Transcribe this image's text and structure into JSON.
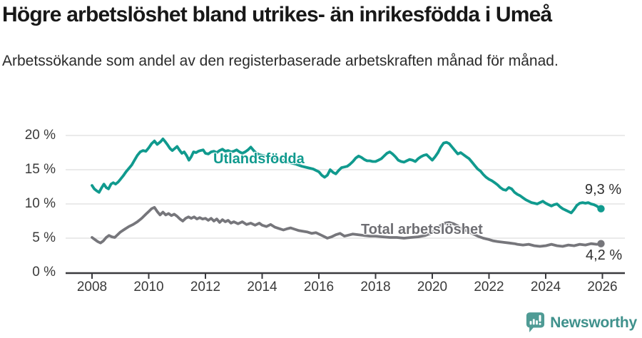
{
  "title": "Högre arbetslöshet bland utrikes- än inrikesfödda i Umeå",
  "subtitle": "Arbetssökande som andel av den registerbaserade arbetskraften månad för månad.",
  "footer": {
    "brand": "Newsworthy",
    "brand_color": "#3f918c",
    "icon_color": "#4f9b95"
  },
  "chart_data": {
    "type": "line",
    "title": "Högre arbetslöshet bland utrikes- än inrikesfödda i Umeå",
    "xlabel": "",
    "ylabel": "%",
    "grid": true,
    "legend_position": "inline-labels",
    "colors": {
      "grid": "#dedede",
      "axis": "#3a3a3e"
    },
    "x_axis": {
      "range": [
        2008,
        2026.1
      ],
      "ticks": [
        2008,
        2010,
        2012,
        2014,
        2016,
        2018,
        2020,
        2022,
        2024,
        2026
      ],
      "tick_labels": [
        "2008",
        "2010",
        "2012",
        "2014",
        "2016",
        "2018",
        "2020",
        "2022",
        "2024",
        "2026"
      ]
    },
    "y_axis": {
      "range": [
        0,
        20
      ],
      "unit": "%",
      "ticks": [
        20,
        15,
        10,
        5,
        0
      ],
      "tick_labels": [
        "20 %",
        "15 %",
        "10 %",
        "5 %",
        "0 %"
      ]
    },
    "series": [
      {
        "name": "Utlandsfödda",
        "color": "#109a8e",
        "end_label": "9,3 %",
        "end_value": 9.3,
        "points": [
          [
            2008,
            12.7
          ],
          [
            2008.08,
            12.2
          ],
          [
            2008.17,
            11.9
          ],
          [
            2008.25,
            11.7
          ],
          [
            2008.33,
            12.3
          ],
          [
            2008.42,
            12.9
          ],
          [
            2008.5,
            12.4
          ],
          [
            2008.58,
            12.2
          ],
          [
            2008.67,
            12.9
          ],
          [
            2008.75,
            13.1
          ],
          [
            2008.83,
            12.9
          ],
          [
            2008.92,
            13.2
          ],
          [
            2009,
            13.6
          ],
          [
            2009.1,
            14.1
          ],
          [
            2009.2,
            14.7
          ],
          [
            2009.3,
            15.2
          ],
          [
            2009.4,
            15.7
          ],
          [
            2009.5,
            16.4
          ],
          [
            2009.6,
            17.1
          ],
          [
            2009.7,
            17.6
          ],
          [
            2009.8,
            17.8
          ],
          [
            2009.9,
            17.7
          ],
          [
            2010,
            18.2
          ],
          [
            2010.1,
            18.8
          ],
          [
            2010.2,
            19.2
          ],
          [
            2010.3,
            18.7
          ],
          [
            2010.42,
            19.1
          ],
          [
            2010.5,
            19.5
          ],
          [
            2010.58,
            19.1
          ],
          [
            2010.67,
            18.6
          ],
          [
            2010.75,
            18.1
          ],
          [
            2010.83,
            17.8
          ],
          [
            2010.92,
            18.1
          ],
          [
            2011,
            18.4
          ],
          [
            2011.08,
            17.9
          ],
          [
            2011.17,
            17.4
          ],
          [
            2011.25,
            17.6
          ],
          [
            2011.33,
            17.1
          ],
          [
            2011.42,
            16.4
          ],
          [
            2011.5,
            16.9
          ],
          [
            2011.58,
            17.6
          ],
          [
            2011.67,
            17.5
          ],
          [
            2011.75,
            17.7
          ],
          [
            2011.83,
            17.8
          ],
          [
            2011.92,
            17.9
          ],
          [
            2012,
            17.4
          ],
          [
            2012.1,
            17.3
          ],
          [
            2012.2,
            17.6
          ],
          [
            2012.3,
            17.7
          ],
          [
            2012.4,
            17.5
          ],
          [
            2012.5,
            17.8
          ],
          [
            2012.6,
            18
          ],
          [
            2012.7,
            17.7
          ],
          [
            2012.8,
            17.8
          ],
          [
            2012.9,
            17.6
          ],
          [
            2013,
            17.7
          ],
          [
            2013.1,
            17.9
          ],
          [
            2013.2,
            17.6
          ],
          [
            2013.3,
            17.4
          ],
          [
            2013.4,
            17.6
          ],
          [
            2013.5,
            17.9
          ],
          [
            2013.6,
            18.3
          ],
          [
            2013.7,
            17.8
          ],
          [
            2013.8,
            17.4
          ],
          [
            2013.9,
            17.2
          ],
          [
            2014,
            17.1
          ],
          [
            2014.2,
            16.9
          ],
          [
            2014.4,
            16.7
          ],
          [
            2014.6,
            16.5
          ],
          [
            2014.8,
            16.3
          ],
          [
            2015,
            16
          ],
          [
            2015.2,
            15.8
          ],
          [
            2015.4,
            15.5
          ],
          [
            2015.6,
            15.3
          ],
          [
            2015.8,
            15.1
          ],
          [
            2016,
            14.7
          ],
          [
            2016.1,
            14.2
          ],
          [
            2016.2,
            13.9
          ],
          [
            2016.3,
            14.2
          ],
          [
            2016.4,
            15
          ],
          [
            2016.5,
            14.6
          ],
          [
            2016.6,
            14.4
          ],
          [
            2016.7,
            14.9
          ],
          [
            2016.8,
            15.3
          ],
          [
            2016.9,
            15.4
          ],
          [
            2017,
            15.5
          ],
          [
            2017.1,
            15.8
          ],
          [
            2017.2,
            16.2
          ],
          [
            2017.3,
            16.7
          ],
          [
            2017.4,
            17
          ],
          [
            2017.5,
            16.8
          ],
          [
            2017.6,
            16.5
          ],
          [
            2017.7,
            16.3
          ],
          [
            2017.8,
            16.3
          ],
          [
            2017.9,
            16.2
          ],
          [
            2018,
            16.2
          ],
          [
            2018.1,
            16.4
          ],
          [
            2018.2,
            16.6
          ],
          [
            2018.3,
            17
          ],
          [
            2018.4,
            17.4
          ],
          [
            2018.5,
            17.6
          ],
          [
            2018.6,
            17.3
          ],
          [
            2018.7,
            16.9
          ],
          [
            2018.8,
            16.4
          ],
          [
            2018.9,
            16.2
          ],
          [
            2019,
            16.1
          ],
          [
            2019.1,
            16.3
          ],
          [
            2019.2,
            16.5
          ],
          [
            2019.3,
            16.4
          ],
          [
            2019.4,
            16.2
          ],
          [
            2019.5,
            16.6
          ],
          [
            2019.6,
            16.9
          ],
          [
            2019.7,
            17.1
          ],
          [
            2019.8,
            17.2
          ],
          [
            2019.9,
            16.8
          ],
          [
            2020,
            16.4
          ],
          [
            2020.1,
            16.9
          ],
          [
            2020.2,
            17.5
          ],
          [
            2020.3,
            18.3
          ],
          [
            2020.4,
            18.9
          ],
          [
            2020.5,
            19
          ],
          [
            2020.6,
            18.8
          ],
          [
            2020.7,
            18.3
          ],
          [
            2020.8,
            17.8
          ],
          [
            2020.9,
            17.3
          ],
          [
            2021,
            17.5
          ],
          [
            2021.1,
            17.2
          ],
          [
            2021.2,
            16.9
          ],
          [
            2021.3,
            16.6
          ],
          [
            2021.4,
            16.1
          ],
          [
            2021.5,
            15.6
          ],
          [
            2021.6,
            15.1
          ],
          [
            2021.7,
            14.8
          ],
          [
            2021.8,
            14.3
          ],
          [
            2021.9,
            13.9
          ],
          [
            2022,
            13.6
          ],
          [
            2022.1,
            13.4
          ],
          [
            2022.2,
            13.1
          ],
          [
            2022.3,
            12.8
          ],
          [
            2022.4,
            12.4
          ],
          [
            2022.5,
            12.1
          ],
          [
            2022.6,
            12
          ],
          [
            2022.7,
            12.4
          ],
          [
            2022.8,
            12.2
          ],
          [
            2022.9,
            11.7
          ],
          [
            2023,
            11.4
          ],
          [
            2023.1,
            11.2
          ],
          [
            2023.2,
            10.9
          ],
          [
            2023.3,
            10.6
          ],
          [
            2023.4,
            10.4
          ],
          [
            2023.5,
            10.2
          ],
          [
            2023.6,
            10.1
          ],
          [
            2023.7,
            10
          ],
          [
            2023.8,
            10.2
          ],
          [
            2023.9,
            10.4
          ],
          [
            2024,
            10.1
          ],
          [
            2024.1,
            9.9
          ],
          [
            2024.2,
            9.7
          ],
          [
            2024.3,
            9.9
          ],
          [
            2024.4,
            10
          ],
          [
            2024.5,
            9.6
          ],
          [
            2024.6,
            9.3
          ],
          [
            2024.7,
            9.1
          ],
          [
            2024.8,
            8.9
          ],
          [
            2024.9,
            8.7
          ],
          [
            2025,
            9.2
          ],
          [
            2025.1,
            9.8
          ],
          [
            2025.2,
            10.1
          ],
          [
            2025.3,
            10.2
          ],
          [
            2025.4,
            10.1
          ],
          [
            2025.5,
            10.2
          ],
          [
            2025.6,
            10
          ],
          [
            2025.7,
            9.9
          ],
          [
            2025.8,
            9.7
          ],
          [
            2025.9,
            9.4
          ],
          [
            2025.95,
            9.3
          ]
        ]
      },
      {
        "name": "Total arbetslöshet",
        "color": "#76767b",
        "end_label": "4,2 %",
        "end_value": 4.2,
        "points": [
          [
            2008,
            5.1
          ],
          [
            2008.1,
            4.8
          ],
          [
            2008.2,
            4.5
          ],
          [
            2008.3,
            4.3
          ],
          [
            2008.4,
            4.6
          ],
          [
            2008.5,
            5.1
          ],
          [
            2008.6,
            5.4
          ],
          [
            2008.7,
            5.2
          ],
          [
            2008.8,
            5.1
          ],
          [
            2008.9,
            5.5
          ],
          [
            2009,
            5.9
          ],
          [
            2009.15,
            6.3
          ],
          [
            2009.3,
            6.7
          ],
          [
            2009.45,
            7
          ],
          [
            2009.6,
            7.4
          ],
          [
            2009.75,
            7.9
          ],
          [
            2009.9,
            8.5
          ],
          [
            2010,
            8.9
          ],
          [
            2010.1,
            9.3
          ],
          [
            2010.2,
            9.5
          ],
          [
            2010.3,
            8.9
          ],
          [
            2010.4,
            8.4
          ],
          [
            2010.5,
            8.8
          ],
          [
            2010.6,
            8.4
          ],
          [
            2010.7,
            8.6
          ],
          [
            2010.8,
            8.3
          ],
          [
            2010.9,
            8.5
          ],
          [
            2011,
            8.2
          ],
          [
            2011.1,
            7.8
          ],
          [
            2011.2,
            7.5
          ],
          [
            2011.3,
            7.9
          ],
          [
            2011.4,
            8.1
          ],
          [
            2011.5,
            7.9
          ],
          [
            2011.6,
            8.1
          ],
          [
            2011.7,
            7.8
          ],
          [
            2011.8,
            8
          ],
          [
            2011.9,
            7.8
          ],
          [
            2012,
            7.9
          ],
          [
            2012.1,
            7.6
          ],
          [
            2012.2,
            7.9
          ],
          [
            2012.3,
            7.5
          ],
          [
            2012.4,
            7.8
          ],
          [
            2012.5,
            7.3
          ],
          [
            2012.6,
            7.7
          ],
          [
            2012.7,
            7.4
          ],
          [
            2012.8,
            7.6
          ],
          [
            2012.9,
            7.2
          ],
          [
            2013,
            7.4
          ],
          [
            2013.15,
            7.1
          ],
          [
            2013.3,
            7.4
          ],
          [
            2013.45,
            7
          ],
          [
            2013.6,
            7.2
          ],
          [
            2013.75,
            6.9
          ],
          [
            2013.9,
            7.2
          ],
          [
            2014,
            6.9
          ],
          [
            2014.15,
            6.7
          ],
          [
            2014.3,
            7
          ],
          [
            2014.45,
            6.6
          ],
          [
            2014.6,
            6.4
          ],
          [
            2014.75,
            6.2
          ],
          [
            2014.9,
            6.4
          ],
          [
            2015,
            6.5
          ],
          [
            2015.15,
            6.3
          ],
          [
            2015.3,
            6.1
          ],
          [
            2015.45,
            6
          ],
          [
            2015.6,
            5.9
          ],
          [
            2015.75,
            5.7
          ],
          [
            2015.9,
            5.8
          ],
          [
            2016,
            5.6
          ],
          [
            2016.15,
            5.3
          ],
          [
            2016.3,
            5
          ],
          [
            2016.45,
            5.2
          ],
          [
            2016.6,
            5.5
          ],
          [
            2016.75,
            5.7
          ],
          [
            2016.9,
            5.3
          ],
          [
            2017,
            5.4
          ],
          [
            2017.2,
            5.6
          ],
          [
            2017.4,
            5.5
          ],
          [
            2017.6,
            5.4
          ],
          [
            2017.8,
            5.3
          ],
          [
            2018,
            5.3
          ],
          [
            2018.25,
            5.2
          ],
          [
            2018.5,
            5.1
          ],
          [
            2018.75,
            5.1
          ],
          [
            2019,
            5
          ],
          [
            2019.25,
            5.1
          ],
          [
            2019.5,
            5.2
          ],
          [
            2019.75,
            5.4
          ],
          [
            2020,
            5.8
          ],
          [
            2020.15,
            6.4
          ],
          [
            2020.3,
            6.9
          ],
          [
            2020.45,
            7.2
          ],
          [
            2020.6,
            7.3
          ],
          [
            2020.75,
            7.1
          ],
          [
            2020.9,
            6.8
          ],
          [
            2021,
            6.5
          ],
          [
            2021.2,
            6.1
          ],
          [
            2021.4,
            5.7
          ],
          [
            2021.6,
            5.3
          ],
          [
            2021.8,
            5
          ],
          [
            2022,
            4.8
          ],
          [
            2022.15,
            4.6
          ],
          [
            2022.3,
            4.5
          ],
          [
            2022.5,
            4.4
          ],
          [
            2022.7,
            4.3
          ],
          [
            2022.9,
            4.2
          ],
          [
            2023,
            4.1
          ],
          [
            2023.2,
            4
          ],
          [
            2023.4,
            4.1
          ],
          [
            2023.6,
            3.9
          ],
          [
            2023.8,
            3.8
          ],
          [
            2024,
            3.9
          ],
          [
            2024.2,
            4.1
          ],
          [
            2024.4,
            3.9
          ],
          [
            2024.6,
            3.8
          ],
          [
            2024.8,
            4
          ],
          [
            2025,
            3.9
          ],
          [
            2025.2,
            4.1
          ],
          [
            2025.4,
            4
          ],
          [
            2025.6,
            4.2
          ],
          [
            2025.8,
            4.1
          ],
          [
            2025.95,
            4.2
          ]
        ]
      }
    ]
  }
}
